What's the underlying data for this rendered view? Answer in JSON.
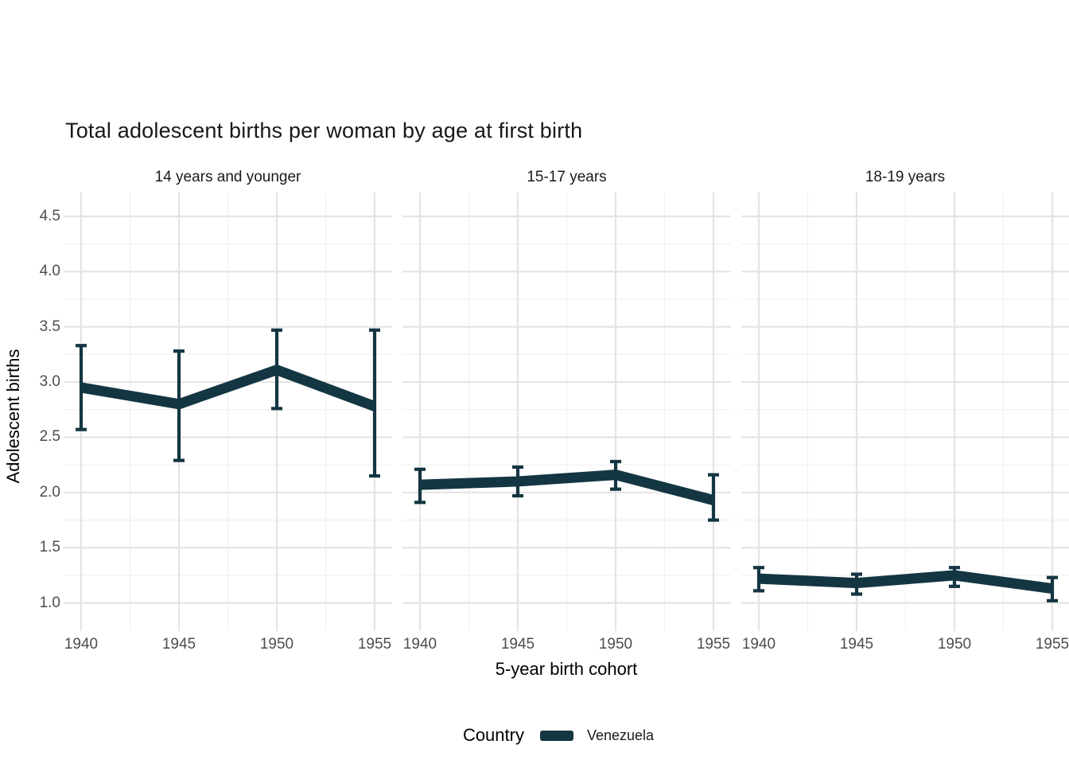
{
  "title": "Total adolescent births per woman by age at first birth",
  "legend": {
    "title": "Country",
    "entries": [
      {
        "label": "Venezuela",
        "color": "#143642"
      }
    ]
  },
  "colors": {
    "line": "#143642",
    "grid_major": "#e4e4e4",
    "grid_minor": "#f0f0f0",
    "axis_text": "#4d4d4d",
    "title_text": "#181818"
  },
  "chart_data": {
    "type": "line",
    "x": [
      1940,
      1945,
      1950,
      1955
    ],
    "x_tick_labels": [
      "1940",
      "1945",
      "1950",
      "1955"
    ],
    "y_tick_values": [
      1.0,
      1.5,
      2.0,
      2.5,
      3.0,
      3.5,
      4.0,
      4.5
    ],
    "y_tick_labels": [
      "1.0",
      "1.5",
      "2.0",
      "2.5",
      "3.0",
      "3.5",
      "4.0",
      "4.5"
    ],
    "ylim": [
      0.745,
      4.715
    ],
    "grid": true,
    "legend_position": "bottom",
    "xlabel": "5-year birth cohort",
    "ylabel": "Adolescent births",
    "title": "Total adolescent births per woman by age at first birth",
    "facets": [
      {
        "label": "14 years and younger",
        "series": [
          {
            "name": "Venezuela",
            "values": [
              2.95,
              2.8,
              3.11,
              2.78
            ],
            "lower": [
              2.57,
              2.29,
              2.76,
              2.15
            ],
            "upper": [
              3.33,
              3.28,
              3.47,
              3.47
            ]
          }
        ]
      },
      {
        "label": "15-17 years",
        "series": [
          {
            "name": "Venezuela",
            "values": [
              2.07,
              2.1,
              2.16,
              1.93
            ],
            "lower": [
              1.91,
              1.97,
              2.03,
              1.75
            ],
            "upper": [
              2.21,
              2.23,
              2.28,
              2.16
            ]
          }
        ]
      },
      {
        "label": "18-19 years",
        "series": [
          {
            "name": "Venezuela",
            "values": [
              1.22,
              1.18,
              1.25,
              1.13
            ],
            "lower": [
              1.11,
              1.08,
              1.15,
              1.02
            ],
            "upper": [
              1.32,
              1.26,
              1.32,
              1.23
            ]
          }
        ]
      }
    ]
  }
}
